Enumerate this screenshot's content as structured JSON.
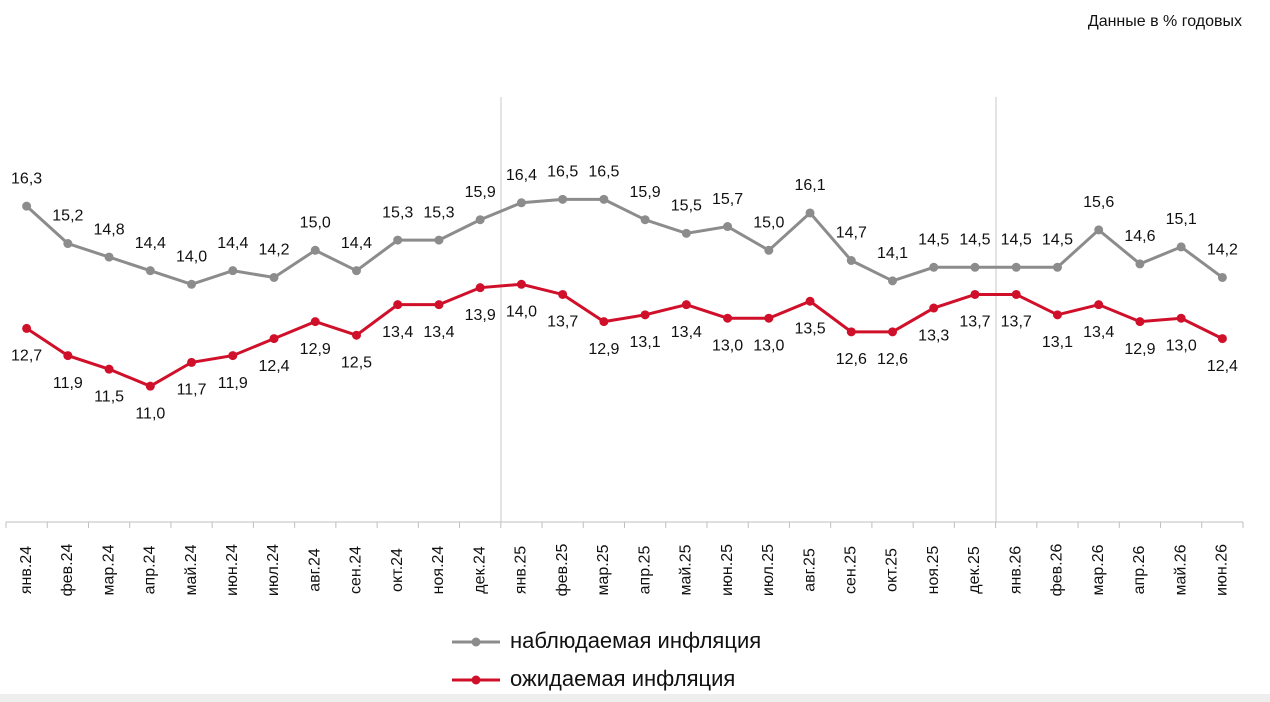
{
  "chart_data": {
    "type": "line",
    "title": "Данные в % годовых",
    "categories": [
      "янв.24",
      "фев.24",
      "мар.24",
      "апр.24",
      "май.24",
      "июн.24",
      "июл.24",
      "авг.24",
      "сен.24",
      "окт.24",
      "ноя.24",
      "дек.24",
      "янв.25",
      "фев.25",
      "мар.25",
      "апр.25",
      "май.25",
      "июн.25",
      "июл.25",
      "авг.25",
      "сен.25",
      "окт.25",
      "ноя.25",
      "дек.25",
      "янв.26",
      "фев.26",
      "мар.26",
      "апр.26",
      "май.26",
      "июн.26"
    ],
    "series": [
      {
        "name": "наблюдаемая инфляция",
        "color": "#8c8c8c",
        "values": [
          16.3,
          15.2,
          14.8,
          14.4,
          14.0,
          14.4,
          14.2,
          15.0,
          14.4,
          15.3,
          15.3,
          15.9,
          16.4,
          16.5,
          16.5,
          15.9,
          15.5,
          15.7,
          15.0,
          16.1,
          14.7,
          14.1,
          14.5,
          14.5,
          14.5,
          14.5,
          15.6,
          14.6,
          15.1,
          14.2
        ],
        "value_labels": [
          "16,3",
          "15,2",
          "14,8",
          "14,4",
          "14,0",
          "14,4",
          "14,2",
          "15,0",
          "14,4",
          "15,3",
          "15,3",
          "15,9",
          "16,4",
          "16,5",
          "16,5",
          "15,9",
          "15,5",
          "15,7",
          "15,0",
          "16,1",
          "14,7",
          "14,1",
          "14,5",
          "14,5",
          "14,5",
          "14,5",
          "15,6",
          "14,6",
          "15,1",
          "14,2"
        ]
      },
      {
        "name": "ожидаемая инфляция",
        "color": "#d0102a",
        "values": [
          12.7,
          11.9,
          11.5,
          11.0,
          11.7,
          11.9,
          12.4,
          12.9,
          12.5,
          13.4,
          13.4,
          13.9,
          14.0,
          13.7,
          12.9,
          13.1,
          13.4,
          13.0,
          13.0,
          13.5,
          12.6,
          12.6,
          13.3,
          13.7,
          13.7,
          13.1,
          13.4,
          12.9,
          13.0,
          12.4
        ],
        "value_labels": [
          "12,7",
          "11,9",
          "11,5",
          "11,0",
          "11,7",
          "11,9",
          "12,4",
          "12,9",
          "12,5",
          "13,4",
          "13,4",
          "13,9",
          "14,0",
          "13,7",
          "12,9",
          "13,1",
          "13,4",
          "13,0",
          "13,0",
          "13,5",
          "12,6",
          "12,6",
          "13,3",
          "13,7",
          "13,7",
          "13,1",
          "13,4",
          "12,9",
          "13,0",
          "12,4"
        ]
      }
    ],
    "ylim": [
      7,
      20
    ]
  }
}
